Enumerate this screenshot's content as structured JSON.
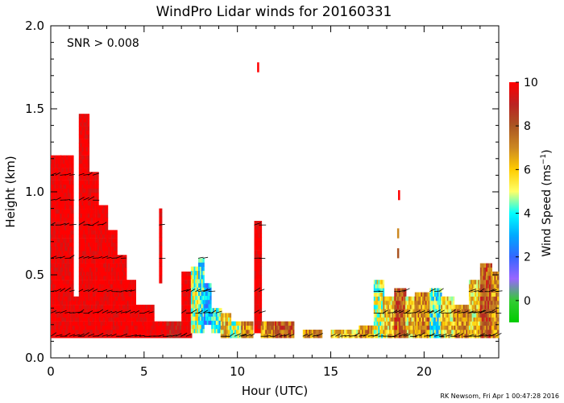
{
  "chart_data": {
    "type": "heatmap",
    "title": "WindPro Lidar winds for 20160331",
    "annotation": "SNR > 0.008",
    "xlabel": "Hour (UTC)",
    "ylabel": "Height (km)",
    "xlim": [
      0,
      24
    ],
    "ylim": [
      0,
      2
    ],
    "xticks": [
      {
        "v": 0,
        "label": "0"
      },
      {
        "v": 5,
        "label": "5"
      },
      {
        "v": 10,
        "label": "10"
      },
      {
        "v": 15,
        "label": "15"
      },
      {
        "v": 20,
        "label": "20"
      }
    ],
    "yticks": [
      {
        "v": 0,
        "label": "0.0"
      },
      {
        "v": 0.5,
        "label": "0.5"
      },
      {
        "v": 1.0,
        "label": "1.0"
      },
      {
        "v": 1.5,
        "label": "1.5"
      },
      {
        "v": 2.0,
        "label": "2.0"
      }
    ],
    "colorbar": {
      "label": "Wind Speed (ms",
      "label_sup": "−1",
      "label_end": ")",
      "range": [
        -1,
        10
      ],
      "ticks": [
        {
          "v": 0,
          "label": "0"
        },
        {
          "v": 2,
          "label": "2"
        },
        {
          "v": 4,
          "label": "4"
        },
        {
          "v": 6,
          "label": "6"
        },
        {
          "v": 8,
          "label": "8"
        },
        {
          "v": 10,
          "label": "10"
        }
      ],
      "stops": [
        {
          "v": -1,
          "color": "#00cc00"
        },
        {
          "v": 0,
          "color": "#33cc33"
        },
        {
          "v": 1,
          "color": "#9966ff"
        },
        {
          "v": 2,
          "color": "#3366ff"
        },
        {
          "v": 3,
          "color": "#00aaff"
        },
        {
          "v": 4,
          "color": "#00ffff"
        },
        {
          "v": 5,
          "color": "#ffff66"
        },
        {
          "v": 6,
          "color": "#ffcc00"
        },
        {
          "v": 7,
          "color": "#cc8822"
        },
        {
          "v": 8,
          "color": "#aa5522"
        },
        {
          "v": 9,
          "color": "#bb2222"
        },
        {
          "v": 10,
          "color": "#ff0000"
        }
      ]
    },
    "columns": [
      {
        "t0": 0,
        "t1": 0.5,
        "hmin": 0.12,
        "hmax": 1.22,
        "speed": 10
      },
      {
        "t0": 0.5,
        "t1": 1.2,
        "hmin": 0.12,
        "hmax": 1.2,
        "speed": 10
      },
      {
        "t0": 1.2,
        "t1": 1.5,
        "hmin": 0.12,
        "hmax": 0.35,
        "speed": 10
      },
      {
        "t0": 1.5,
        "t1": 2.0,
        "hmin": 0.12,
        "hmax": 1.45,
        "speed": 10
      },
      {
        "t0": 2.0,
        "t1": 2.5,
        "hmin": 0.12,
        "hmax": 1.1,
        "speed": 10
      },
      {
        "t0": 2.5,
        "t1": 3.0,
        "hmin": 0.12,
        "hmax": 0.9,
        "speed": 10
      },
      {
        "t0": 3.0,
        "t1": 3.5,
        "hmin": 0.12,
        "hmax": 0.75,
        "speed": 10
      },
      {
        "t0": 3.5,
        "t1": 4.0,
        "hmin": 0.12,
        "hmax": 0.6,
        "speed": 10
      },
      {
        "t0": 4.0,
        "t1": 4.5,
        "hmin": 0.12,
        "hmax": 0.45,
        "speed": 10
      },
      {
        "t0": 4.5,
        "t1": 5.5,
        "hmin": 0.12,
        "hmax": 0.3,
        "speed": 10
      },
      {
        "t0": 5.5,
        "t1": 6.2,
        "hmin": 0.12,
        "hmax": 0.22,
        "speed": 10
      },
      {
        "t0": 5.8,
        "t1": 5.95,
        "hmin": 0.45,
        "hmax": 0.88,
        "speed": 10
      },
      {
        "t0": 6.2,
        "t1": 7.0,
        "hmin": 0.12,
        "hmax": 0.2,
        "speed": 9
      },
      {
        "t0": 7.0,
        "t1": 7.5,
        "hmin": 0.12,
        "hmax": 0.5,
        "speed": 10
      },
      {
        "t0": 7.5,
        "t1": 7.9,
        "hmin": 0.15,
        "hmax": 0.55,
        "speed": 5
      },
      {
        "t0": 7.9,
        "t1": 8.2,
        "hmin": 0.15,
        "hmax": 0.6,
        "speed": 4
      },
      {
        "t0": 8.2,
        "t1": 8.6,
        "hmin": 0.2,
        "hmax": 0.45,
        "speed": 3
      },
      {
        "t0": 8.6,
        "t1": 9.1,
        "hmin": 0.15,
        "hmax": 0.3,
        "speed": 4
      },
      {
        "t0": 9.1,
        "t1": 9.6,
        "hmin": 0.12,
        "hmax": 0.25,
        "speed": 6
      },
      {
        "t0": 9.6,
        "t1": 10.2,
        "hmin": 0.12,
        "hmax": 0.22,
        "speed": 5
      },
      {
        "t0": 10.2,
        "t1": 10.8,
        "hmin": 0.12,
        "hmax": 0.2,
        "speed": 7
      },
      {
        "t0": 10.9,
        "t1": 11.25,
        "hmin": 0.15,
        "hmax": 0.82,
        "speed": 10
      },
      {
        "t0": 11.25,
        "t1": 12.0,
        "hmin": 0.12,
        "hmax": 0.22,
        "speed": 7
      },
      {
        "t0": 12.0,
        "t1": 13.0,
        "hmin": 0.12,
        "hmax": 0.2,
        "speed": 8
      },
      {
        "t0": 13.5,
        "t1": 14.5,
        "hmin": 0.12,
        "hmax": 0.15,
        "speed": 7
      },
      {
        "t0": 15.0,
        "t1": 16.5,
        "hmin": 0.12,
        "hmax": 0.15,
        "speed": 6
      },
      {
        "t0": 16.5,
        "t1": 17.3,
        "hmin": 0.12,
        "hmax": 0.18,
        "speed": 7
      },
      {
        "t0": 17.3,
        "t1": 17.8,
        "hmin": 0.12,
        "hmax": 0.45,
        "speed": 5
      },
      {
        "t0": 17.8,
        "t1": 18.4,
        "hmin": 0.12,
        "hmax": 0.35,
        "speed": 6
      },
      {
        "t0": 18.4,
        "t1": 19.0,
        "hmin": 0.12,
        "hmax": 0.4,
        "speed": 8
      },
      {
        "t0": 19.0,
        "t1": 19.5,
        "hmin": 0.12,
        "hmax": 0.35,
        "speed": 6
      },
      {
        "t0": 19.5,
        "t1": 20.3,
        "hmin": 0.12,
        "hmax": 0.38,
        "speed": 7
      },
      {
        "t0": 20.3,
        "t1": 20.9,
        "hmin": 0.12,
        "hmax": 0.42,
        "speed": 4
      },
      {
        "t0": 20.9,
        "t1": 21.6,
        "hmin": 0.12,
        "hmax": 0.35,
        "speed": 6
      },
      {
        "t0": 21.6,
        "t1": 22.4,
        "hmin": 0.12,
        "hmax": 0.3,
        "speed": 7
      },
      {
        "t0": 22.4,
        "t1": 23.0,
        "hmin": 0.12,
        "hmax": 0.45,
        "speed": 6
      },
      {
        "t0": 23.0,
        "t1": 23.6,
        "hmin": 0.12,
        "hmax": 0.55,
        "speed": 8
      },
      {
        "t0": 23.6,
        "t1": 24.0,
        "hmin": 0.12,
        "hmax": 0.5,
        "speed": 7
      }
    ],
    "isolated": [
      {
        "t": 11.1,
        "hmin": 1.72,
        "hmax": 1.78,
        "speed": 10
      },
      {
        "t": 18.65,
        "hmin": 0.95,
        "hmax": 1.01,
        "speed": 10
      },
      {
        "t": 18.6,
        "hmin": 0.6,
        "hmax": 0.66,
        "speed": 8
      },
      {
        "t": 18.6,
        "hmin": 0.72,
        "hmax": 0.78,
        "speed": 7
      }
    ],
    "wind_barb_levels": [
      0.13,
      0.27,
      0.4,
      0.6,
      0.8,
      0.95,
      1.1
    ]
  },
  "credit": "RK Newsom, Fri Apr  1 00:47:28 2016"
}
